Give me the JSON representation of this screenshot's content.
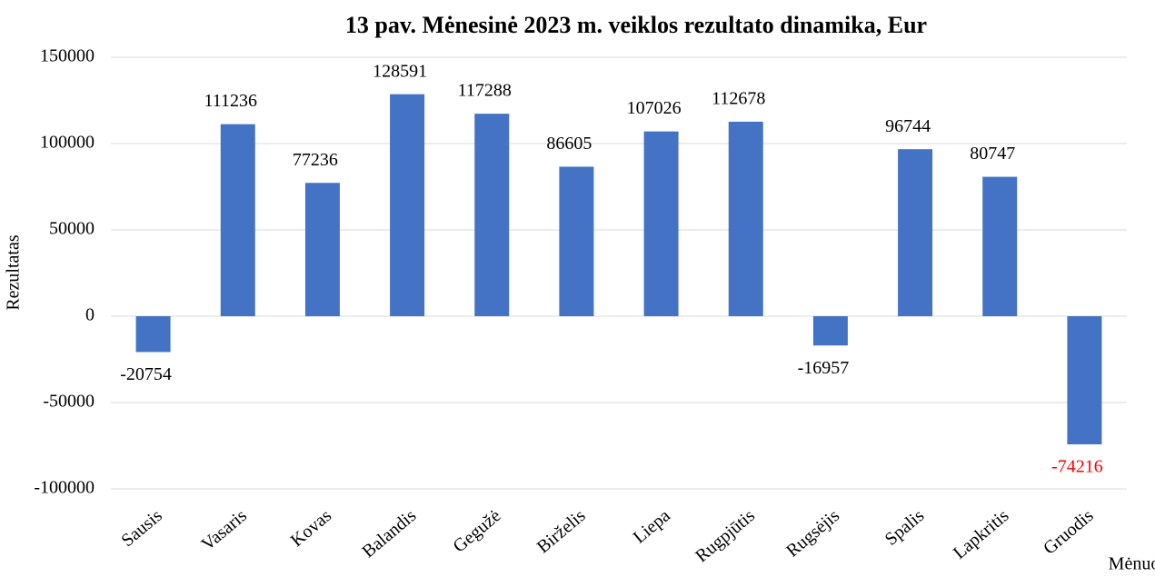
{
  "chart_data": {
    "type": "bar",
    "title": "13 pav. Mėnesinė 2023 m. veiklos rezultato dinamika, Eur",
    "x_label": "Mėnuo",
    "y_label": "Rezultatas",
    "categories": [
      "Sausis",
      "Vasaris",
      "Kovas",
      "Balandis",
      "Gegužė",
      "Birželis",
      "Liepa",
      "Rugpjūtis",
      "Rugsėjis",
      "Spalis",
      "Lapkritis",
      "Gruodis"
    ],
    "values": [
      -20754,
      111236,
      77236,
      128591,
      117288,
      86605,
      107026,
      112678,
      -16957,
      96744,
      80747,
      -74216
    ],
    "value_label_colors": [
      "#000000",
      "#000000",
      "#000000",
      "#000000",
      "#000000",
      "#000000",
      "#000000",
      "#000000",
      "#000000",
      "#000000",
      "#000000",
      "#ff0000"
    ],
    "color": "#4472c4",
    "ylim": [
      -100000,
      150000
    ],
    "yticks": [
      -100000,
      -50000,
      0,
      50000,
      100000,
      150000
    ],
    "grid": true
  }
}
